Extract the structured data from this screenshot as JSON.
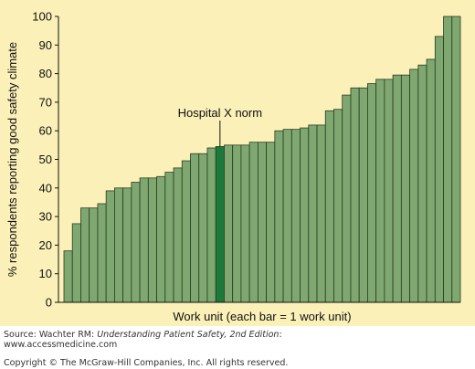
{
  "chart_data": {
    "type": "bar",
    "title": "",
    "xlabel": "Work unit (each bar = 1 work unit)",
    "ylabel": "% respondents reporting good safety climate",
    "ylim": [
      0,
      100
    ],
    "yticks": [
      "0",
      "10",
      "20",
      "30",
      "40",
      "50",
      "60",
      "70",
      "80",
      "90",
      "100"
    ],
    "grid": false,
    "values": [
      18,
      27.5,
      33,
      33,
      34.5,
      39,
      40,
      40,
      42,
      43.5,
      43.5,
      44,
      45.5,
      47,
      49.5,
      52,
      52,
      54,
      54.5,
      55,
      55,
      55,
      56,
      56,
      56,
      60,
      60.5,
      60.5,
      61,
      62,
      62,
      67,
      67.5,
      72.5,
      75,
      75,
      76.5,
      78,
      78,
      79.5,
      79.5,
      81.5,
      83,
      85,
      93,
      100,
      100
    ],
    "highlight_index": 18,
    "annotation": {
      "text": "Hospital X norm",
      "bar_index": 18
    },
    "colors": {
      "bar_fill": "#7fa870",
      "bar_highlight": "#1b7a3a",
      "bar_stroke": "#2a3a26",
      "background": "#fbf0b8"
    }
  },
  "caption": {
    "source_prefix": "Source: Wachter RM: ",
    "source_title": "Understanding Patient Safety, 2nd Edition",
    "source_suffix": ":",
    "source_url": "www.accessmedicine.com",
    "copyright": "Copyright © The McGraw-Hill Companies, Inc. All rights reserved."
  }
}
